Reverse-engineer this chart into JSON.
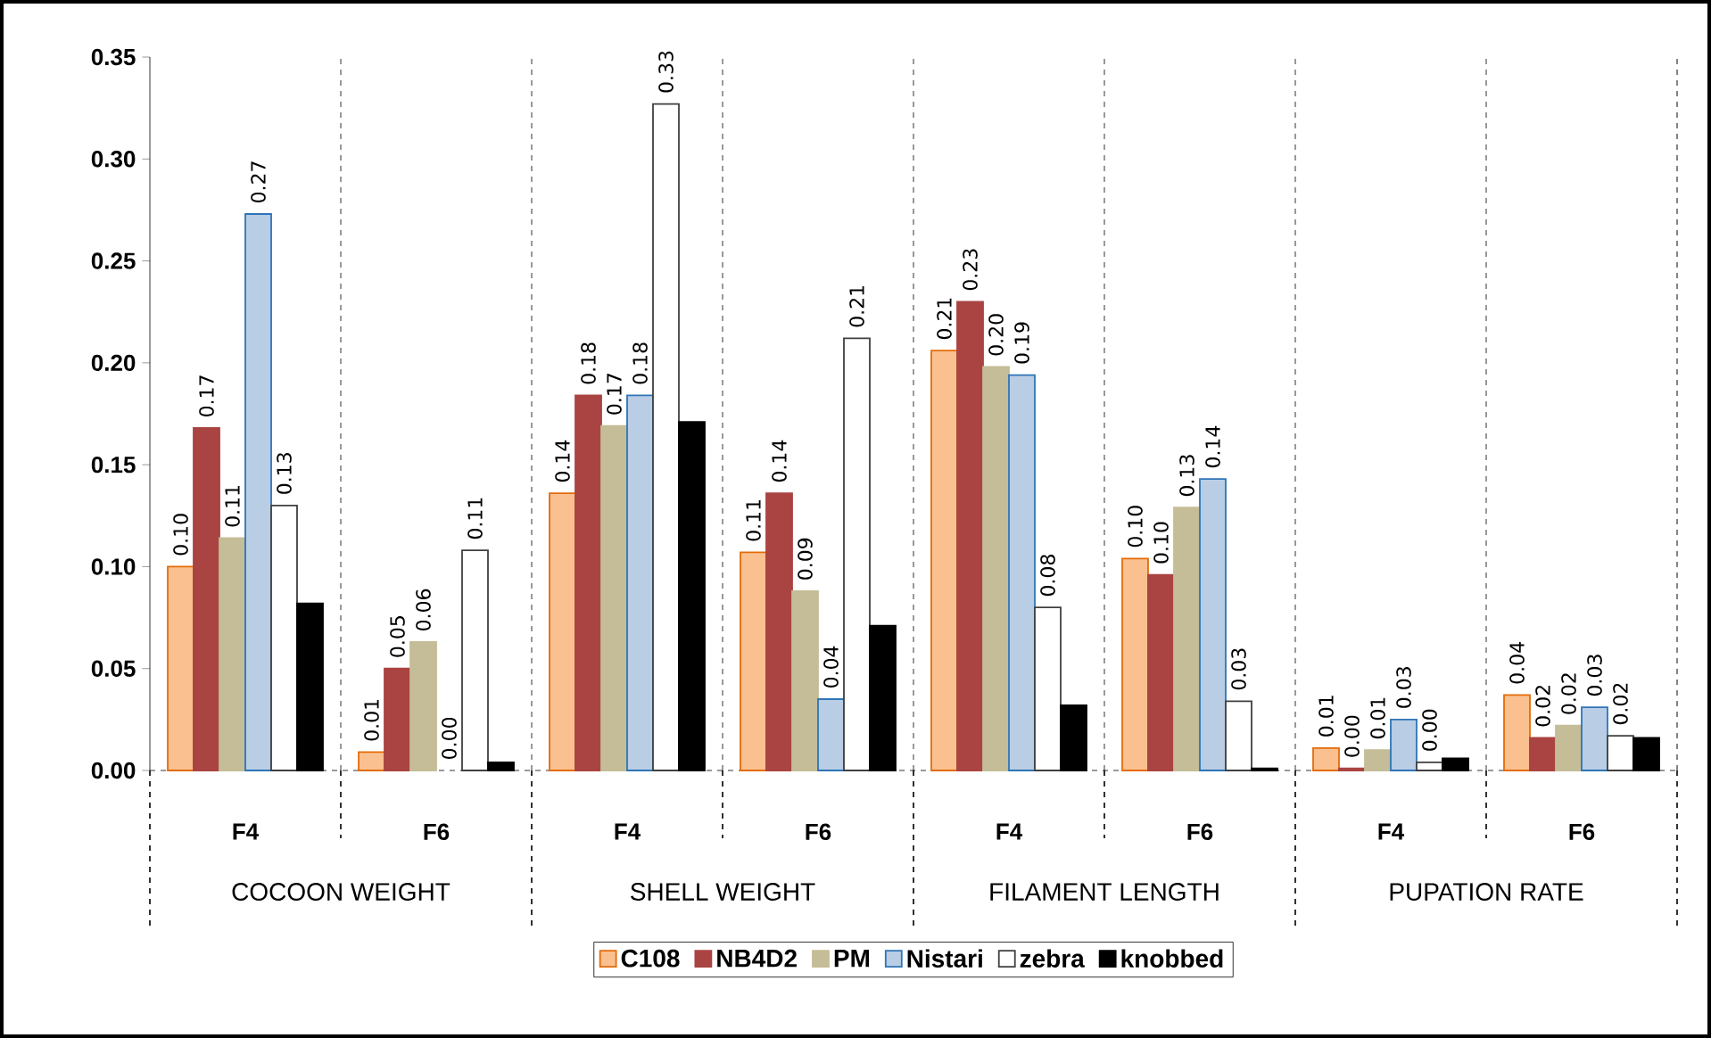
{
  "chart_data": {
    "type": "bar",
    "categories": [
      "F4",
      "F6",
      "F4",
      "F6",
      "F4",
      "F6",
      "F4",
      "F6"
    ],
    "annotations": [
      "COCOON WEIGHT",
      "SHELL WEIGHT",
      "FILAMENT LENGTH",
      "PUPATION RATE"
    ],
    "series": [
      {
        "name": "C108",
        "color": "#fac090",
        "values": [
          0.1,
          0.009,
          0.136,
          0.107,
          0.206,
          0.104,
          0.011,
          0.037
        ],
        "value_labels": [
          "0.10",
          "0.01",
          "0.14",
          "0.11",
          "0.21",
          "0.10",
          "0.01",
          "0.04"
        ]
      },
      {
        "name": "NB4D2",
        "color": "#a94442",
        "values": [
          0.168,
          0.05,
          0.184,
          0.136,
          0.23,
          0.096,
          0.001,
          0.016
        ],
        "value_labels": [
          "0.17",
          "0.05",
          "0.18",
          "0.14",
          "0.23",
          "0.10",
          "0.00",
          "0.02"
        ]
      },
      {
        "name": "PM",
        "color": "#c4bd97",
        "values": [
          0.114,
          0.063,
          0.169,
          0.088,
          0.198,
          0.129,
          0.01,
          0.022
        ],
        "value_labels": [
          "0.11",
          "0.06",
          "0.17",
          "0.09",
          "0.20",
          "0.13",
          "0.01",
          "0.02"
        ]
      },
      {
        "name": "Nistari",
        "color": "#b9cde5",
        "values": [
          0.273,
          0.0,
          0.184,
          0.035,
          0.194,
          0.143,
          0.025,
          0.031
        ],
        "value_labels": [
          "0.27",
          "0.00",
          "0.18",
          "0.04",
          "0.19",
          "0.14",
          "0.03",
          "0.03"
        ]
      },
      {
        "name": "zebra",
        "color": "#ffffff",
        "values": [
          0.13,
          0.108,
          0.327,
          0.212,
          0.08,
          0.034,
          0.004,
          0.017
        ],
        "value_labels": [
          "0.13",
          "0.11",
          "0.33",
          "0.21",
          "0.08",
          "0.03",
          "0.00",
          "0.02"
        ]
      },
      {
        "name": "knobbed",
        "color": "#000000",
        "values": [
          0.082,
          0.004,
          0.171,
          0.071,
          0.032,
          0.001,
          0.006,
          0.016
        ]
      }
    ],
    "ylim": [
      0,
      0.35
    ],
    "yticks": [
      {
        "value": 0,
        "label": "0.00"
      },
      {
        "value": 0.05,
        "label": "0.05"
      },
      {
        "value": 0.1,
        "label": "0.10"
      },
      {
        "value": 0.15,
        "label": "0.15"
      },
      {
        "value": 0.2,
        "label": "0.20"
      },
      {
        "value": 0.25,
        "label": "0.25"
      },
      {
        "value": 0.3,
        "label": "0.30"
      },
      {
        "value": 0.35,
        "label": "0.35"
      }
    ],
    "grid": "x",
    "legend": "bottom"
  }
}
